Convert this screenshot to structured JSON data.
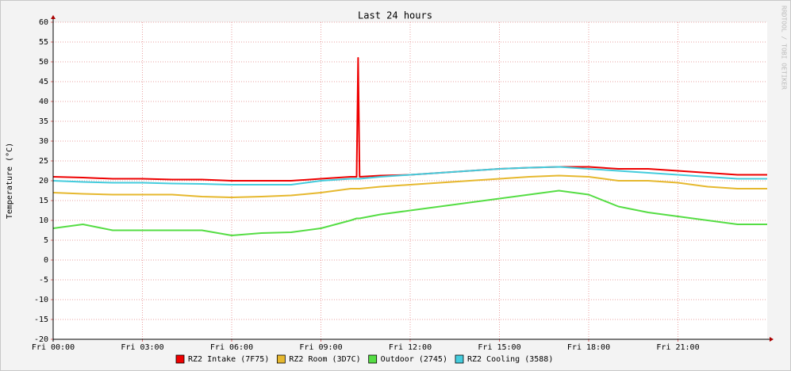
{
  "chart_data": {
    "type": "line",
    "title": "Last 24 hours",
    "y_label": "Temperature (°C)",
    "watermark": "RRDTOOL / TOBI OETIKER",
    "x": [
      0,
      1,
      2,
      3,
      4,
      5,
      6,
      7,
      8,
      9,
      10,
      10.2,
      10.25,
      10.3,
      11,
      12,
      13,
      14,
      15,
      16,
      17,
      18,
      19,
      20,
      21,
      22,
      23,
      24
    ],
    "xlim": [
      0,
      24
    ],
    "xticks": [
      {
        "value": 0,
        "label": "Fri 00:00"
      },
      {
        "value": 3,
        "label": "Fri 03:00"
      },
      {
        "value": 6,
        "label": "Fri 06:00"
      },
      {
        "value": 9,
        "label": "Fri 09:00"
      },
      {
        "value": 12,
        "label": "Fri 12:00"
      },
      {
        "value": 15,
        "label": "Fri 15:00"
      },
      {
        "value": 18,
        "label": "Fri 18:00"
      },
      {
        "value": 21,
        "label": "Fri 21:00"
      }
    ],
    "ylim": [
      -20,
      60
    ],
    "yticks": [
      -20,
      -15,
      -10,
      -5,
      0,
      5,
      10,
      15,
      20,
      25,
      30,
      35,
      40,
      45,
      50,
      55,
      60
    ],
    "grid": true,
    "series": [
      {
        "name": "RZ2 Intake (7F75)",
        "color": "#ee0000",
        "values": [
          21,
          20.8,
          20.5,
          20.5,
          20.3,
          20.3,
          20,
          20,
          20,
          20.5,
          21,
          21,
          51,
          21,
          21.3,
          21.5,
          22,
          22.5,
          23,
          23.3,
          23.5,
          23.5,
          23,
          23,
          22.5,
          22,
          21.5,
          21.5
        ]
      },
      {
        "name": "RZ2 Room (3D7C)",
        "color": "#e6b82e",
        "values": [
          17,
          16.7,
          16.5,
          16.5,
          16.5,
          16,
          15.8,
          16,
          16.3,
          17,
          18,
          18,
          18,
          18,
          18.5,
          19,
          19.5,
          20,
          20.5,
          21,
          21.3,
          21,
          20,
          20,
          19.5,
          18.5,
          18,
          18
        ]
      },
      {
        "name": "Outdoor (2745)",
        "color": "#55dd44",
        "values": [
          8,
          9,
          7.5,
          7.5,
          7.5,
          7.5,
          6.2,
          6.8,
          7,
          8,
          10,
          10.5,
          10.5,
          10.5,
          11.5,
          12.5,
          13.5,
          14.5,
          15.5,
          16.5,
          17.5,
          16.5,
          13.5,
          12,
          11,
          10,
          9,
          9
        ]
      },
      {
        "name": "RZ2 Cooling (3588)",
        "color": "#44ccdd",
        "values": [
          20,
          19.7,
          19.5,
          19.5,
          19.3,
          19.2,
          19,
          19,
          19,
          20,
          20.5,
          20.5,
          20.5,
          20.5,
          21,
          21.5,
          22,
          22.5,
          23,
          23.3,
          23.5,
          23,
          22.5,
          22,
          21.5,
          21,
          20.5,
          20.5
        ]
      }
    ]
  }
}
